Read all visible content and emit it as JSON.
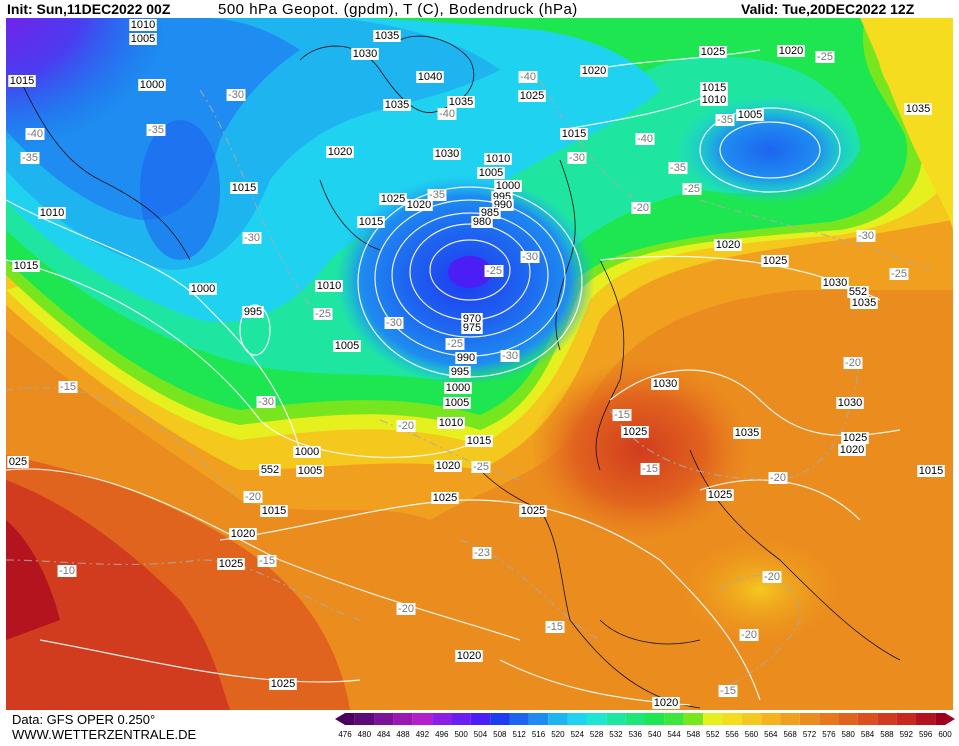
{
  "header": {
    "init": "Init: Sun,11DEC2022 00Z",
    "title": "500 hPa Geopot. (gpdm), T (C), Bodendruck (hPa)",
    "valid": "Valid: Tue,20DEC2022 12Z"
  },
  "footer": {
    "source": "Data: GFS OPER 0.250°",
    "website": "WWW.WETTERZENTRALE.DE"
  },
  "colorbar": {
    "labels": [
      476,
      480,
      484,
      488,
      492,
      496,
      500,
      504,
      508,
      512,
      516,
      520,
      524,
      528,
      532,
      536,
      540,
      544,
      548,
      552,
      556,
      560,
      564,
      568,
      572,
      576,
      580,
      584,
      588,
      592,
      596,
      600
    ],
    "colors": [
      "#4b0060",
      "#5c0a7a",
      "#7a1399",
      "#9b19b3",
      "#b31fcc",
      "#8c1ee6",
      "#6b1ef0",
      "#4b1ef5",
      "#1e3cf0",
      "#1e64f0",
      "#1e8cf0",
      "#1eb4f0",
      "#1ed2f0",
      "#1ee6d2",
      "#1ee6a0",
      "#1ee678",
      "#1ee650",
      "#3ce63c",
      "#78e61e",
      "#e6f01e",
      "#f5dc1e",
      "#f5c81e",
      "#f5b41e",
      "#f0a01e",
      "#eb8c1e",
      "#e6781e",
      "#e1641e",
      "#dc501e",
      "#d23c1e",
      "#c8281e",
      "#b4141e",
      "#a0001e"
    ]
  },
  "isobar_labels": [
    "1010",
    "1005",
    "1015",
    "1000",
    "1010",
    "1015",
    "1000",
    "995",
    "1015",
    "1035",
    "1030",
    "1040",
    "1035",
    "1035",
    "1020",
    "1030",
    "1025",
    "1020",
    "1015",
    "1010",
    "1005",
    "1000",
    "995",
    "990",
    "985",
    "980",
    "970",
    "975",
    "990",
    "995",
    "1000",
    "1005",
    "1010",
    "1015",
    "1020",
    "1010",
    "1005",
    "1000",
    "1005",
    "1015",
    "1020",
    "1025",
    "1025",
    "1025",
    "1025",
    "1025",
    "1030",
    "1035",
    "1030",
    "1025",
    "1020",
    "1015",
    "1020",
    "1025",
    "1030",
    "1035",
    "1025",
    "1020",
    "1020",
    "1015",
    "1010",
    "1005",
    "1015",
    "1025",
    "1035",
    "1020",
    "1020",
    "1025",
    "025",
    "552",
    "552"
  ],
  "temperature_labels": [
    "-40",
    "-35",
    "-35",
    "-30",
    "-30",
    "-25",
    "-30",
    "-25",
    "-30",
    "-25",
    "-30",
    "-35",
    "-40",
    "-40",
    "-30",
    "-40",
    "-35",
    "-35",
    "-25",
    "-20",
    "-25",
    "-30",
    "-25",
    "-20",
    "-15",
    "-30",
    "-20",
    "-25",
    "-20",
    "-15",
    "-10",
    "-23",
    "-20",
    "-15",
    "-15",
    "-15",
    "-20",
    "-20",
    "-20",
    "-15"
  ]
}
